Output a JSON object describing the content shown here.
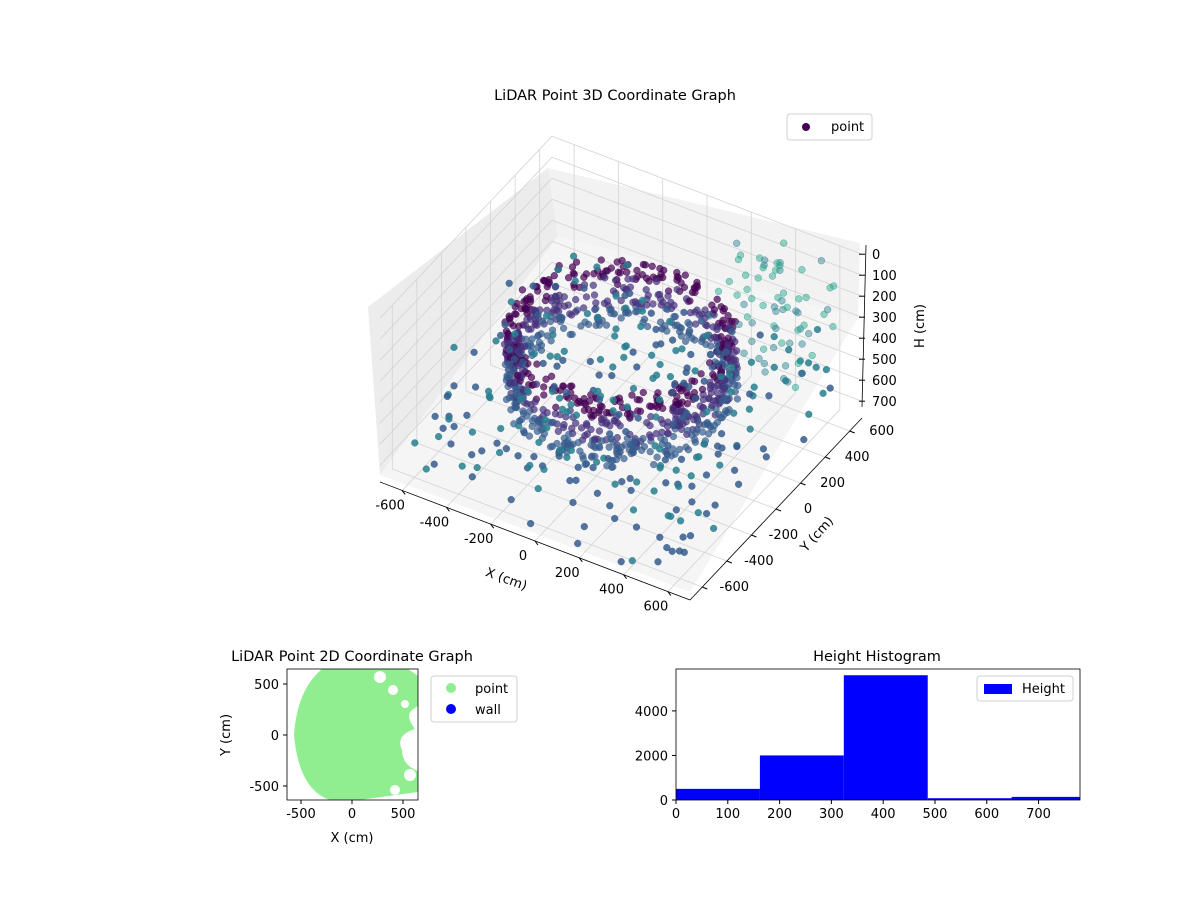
{
  "figure": {
    "background": "#ffffff"
  },
  "chart_data": [
    {
      "type": "scatter",
      "projection": "3d",
      "title": "LiDAR Point 3D Coordinate Graph",
      "xlabel": "X (cm)",
      "ylabel": "Y (cm)",
      "zlabel": "H (cm)",
      "xlim": [
        -700,
        700
      ],
      "ylim": [
        -700,
        700
      ],
      "zlim": [
        0,
        780
      ],
      "z_axis_inverted": true,
      "xticks": [
        "-600",
        "-400",
        "-200",
        "0",
        "200",
        "400",
        "600"
      ],
      "yticks": [
        "-600",
        "-400",
        "-200",
        "0",
        "200",
        "400",
        "600"
      ],
      "zticks": [
        "0",
        "100",
        "200",
        "300",
        "400",
        "500",
        "600",
        "700"
      ],
      "colormap": "viridis",
      "grid": true,
      "legend": {
        "placement": "upper-right",
        "entries": [
          {
            "name": "point",
            "color": "#440154"
          }
        ]
      },
      "series": [
        {
          "name": "point",
          "description_points": "approx. 7,800 points forming a partial cylindrical shell of radius ~600 cm around the origin, heights mostly 200-500 cm, plus sparse scattered outliers"
        }
      ]
    },
    {
      "type": "scatter",
      "title": "LiDAR Point 2D Coordinate Graph",
      "xlabel": "X (cm)",
      "ylabel": "Y (cm)",
      "xlim": [
        -650,
        650
      ],
      "ylim": [
        -650,
        650
      ],
      "xticks": [
        "-500",
        "0",
        "500"
      ],
      "yticks": [
        "500",
        "0",
        "-500"
      ],
      "legend": {
        "placement": "outside-right",
        "entries": [
          {
            "name": "point",
            "color": "#90ee90"
          },
          {
            "name": "wall",
            "color": "#0000ff"
          }
        ]
      }
    },
    {
      "type": "bar",
      "subtype": "histogram",
      "title": "Height Histogram",
      "bin_edges": [
        0,
        162,
        324,
        486,
        648,
        780
      ],
      "values": [
        500,
        2000,
        5600,
        80,
        140
      ],
      "xlim": [
        0,
        780
      ],
      "ylim": [
        0,
        5880
      ],
      "xticks": [
        "0",
        "100",
        "200",
        "300",
        "400",
        "500",
        "600",
        "700"
      ],
      "yticks": [
        "0",
        "2000",
        "4000"
      ],
      "color": "#0000ff",
      "legend": {
        "placement": "upper-right",
        "entries": [
          {
            "name": "Height",
            "color": "#0000ff"
          }
        ]
      }
    }
  ]
}
